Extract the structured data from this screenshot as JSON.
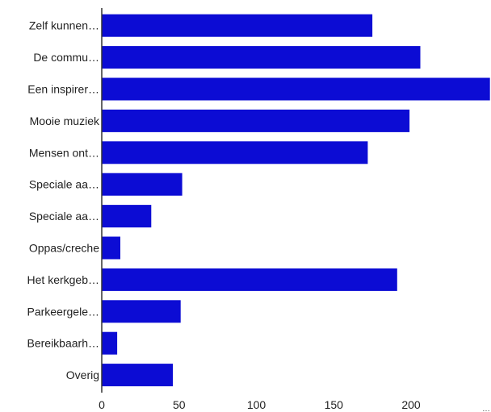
{
  "chart_data": {
    "type": "bar",
    "orientation": "horizontal",
    "categories": [
      "Zelf kunnen…",
      "De commu…",
      "Een inspirer…",
      "Mooie muziek",
      "Mensen ont…",
      "Speciale aa…",
      "Speciale aa…",
      "Oppas/creche",
      "Het kerkgeb…",
      "Parkeergele…",
      "Bereikbaarh…",
      "Overig"
    ],
    "values": [
      175,
      206,
      251,
      199,
      172,
      52,
      32,
      12,
      191,
      51,
      10,
      46
    ],
    "xticks": [
      "0",
      "50",
      "100",
      "150",
      "200"
    ],
    "xlim": [
      0,
      251
    ],
    "axis_overflow_marker": "…",
    "grid": false,
    "legend": "none",
    "bar_color": "#0c0cd4",
    "axis_color": "#333333"
  }
}
